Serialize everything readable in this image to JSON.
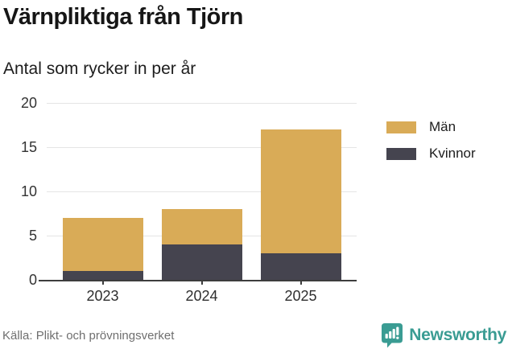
{
  "header": {
    "title": "Värnpliktiga från Tjörn",
    "subtitle": "Antal som rycker in per år"
  },
  "chart_data": {
    "type": "bar",
    "stacked": true,
    "title": "Värnpliktiga från Tjörn",
    "subtitle": "Antal som rycker in per år",
    "categories": [
      "2023",
      "2024",
      "2025"
    ],
    "series": [
      {
        "name": "Män",
        "color": "#d9ab57",
        "values": [
          6,
          4,
          14
        ]
      },
      {
        "name": "Kvinnor",
        "color": "#45444f",
        "values": [
          1,
          4,
          3
        ]
      }
    ],
    "stack_totals": [
      7,
      8,
      17
    ],
    "xlabel": "",
    "ylabel": "",
    "ylim": [
      0,
      20
    ],
    "yticks": [
      0,
      5,
      10,
      15,
      20
    ],
    "grid": "horizontal",
    "legend_position": "right"
  },
  "footer": {
    "source": "Källa: Plikt- och prövningsverket",
    "brand": "Newsworthy",
    "brand_color": "#3a9c93"
  },
  "icons": {
    "brand_logo": "newsworthy-speech-bubble-barchart-icon"
  }
}
